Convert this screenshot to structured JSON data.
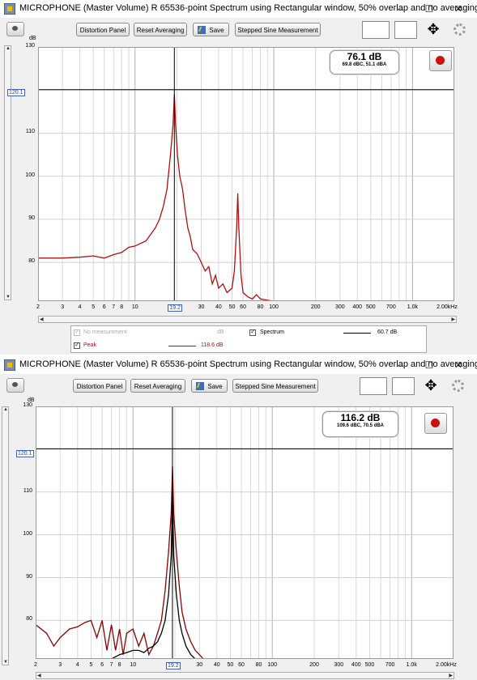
{
  "windows": [
    {
      "title": "MICROPHONE (Master Volume) R 65536-point Spectrum using Rectangular window, 50% overlap and no averaging",
      "controls": {
        "minimize": "–",
        "maximize": "☐",
        "close": "✕"
      },
      "toolbar": {
        "distortion_label": "Distortion Panel",
        "reset_label": "Reset Averaging",
        "save_label": "Save",
        "stepped_label": "Stepped Sine Measurement"
      },
      "y_unit": "dB",
      "cursor_y": "120.1",
      "cursor_x": "19.2",
      "readout_main": "76.1 dB",
      "readout_sub": "69.8 dBC, 51.1 dBA",
      "legend": {
        "no_measurement": "No measurement",
        "no_measurement_unit": "dB",
        "spectrum": "Spectrum",
        "spectrum_value": "60.7 dB",
        "peak": "Peak",
        "peak_value": "118.6 dB"
      }
    },
    {
      "title": "MICROPHONE (Master Volume) R 65536-point Spectrum using Rectangular window, 50% overlap and no averaging",
      "controls": {
        "minimize": "–",
        "maximize": "☐",
        "close": "✕"
      },
      "toolbar": {
        "distortion_label": "Distortion Panel",
        "reset_label": "Reset Averaging",
        "save_label": "Save",
        "stepped_label": "Stepped Sine Measurement"
      },
      "y_unit": "dB",
      "cursor_y": "120.1",
      "cursor_x": "19.2",
      "readout_main": "116.2 dB",
      "readout_sub": "109.6 dBC, 70.5 dBA"
    }
  ],
  "chart_data": [
    {
      "type": "line",
      "xscale": "log",
      "xlim": [
        2,
        2000
      ],
      "ylim": [
        71,
        130
      ],
      "x_ticks": [
        "2",
        "3",
        "4",
        "5",
        "6",
        "7",
        "8",
        "10",
        "19.2",
        "30",
        "40",
        "50",
        "60",
        "80",
        "100",
        "200",
        "300",
        "400",
        "500",
        "700",
        "1.0k",
        "2.00kHz"
      ],
      "y_ticks": [
        130,
        110,
        100,
        90,
        80
      ],
      "series": [
        {
          "name": "Peak",
          "color": "#b01010",
          "points": [
            [
              2,
              81
            ],
            [
              3,
              81
            ],
            [
              4,
              81.2
            ],
            [
              5,
              81.5
            ],
            [
              6,
              81
            ],
            [
              7,
              81.8
            ],
            [
              8,
              82.3
            ],
            [
              9,
              83.5
            ],
            [
              10,
              83.8
            ],
            [
              12,
              85
            ],
            [
              14,
              88
            ],
            [
              15,
              90
            ],
            [
              16,
              93
            ],
            [
              17,
              97
            ],
            [
              18,
              105
            ],
            [
              18.8,
              112
            ],
            [
              19.2,
              119
            ],
            [
              19.6,
              112
            ],
            [
              20.2,
              105
            ],
            [
              21,
              100
            ],
            [
              22,
              97
            ],
            [
              23,
              92
            ],
            [
              24,
              88
            ],
            [
              25,
              86
            ],
            [
              26,
              83
            ],
            [
              28,
              82
            ],
            [
              30,
              80
            ],
            [
              32,
              78
            ],
            [
              34,
              79
            ],
            [
              36,
              75
            ],
            [
              38,
              77
            ],
            [
              40,
              74
            ],
            [
              43,
              75
            ],
            [
              46,
              73
            ],
            [
              50,
              74
            ],
            [
              52,
              78
            ],
            [
              54,
              88
            ],
            [
              55,
              96
            ],
            [
              56,
              88
            ],
            [
              58,
              77
            ],
            [
              60,
              73
            ],
            [
              65,
              72
            ],
            [
              70,
              71.5
            ],
            [
              75,
              72.5
            ],
            [
              80,
              71.5
            ],
            [
              90,
              71.2
            ],
            [
              100,
              71
            ],
            [
              200,
              71
            ],
            [
              2000,
              71
            ]
          ]
        },
        {
          "name": "Spectrum",
          "color": "#000000",
          "points": []
        }
      ]
    },
    {
      "type": "line",
      "xscale": "log",
      "xlim": [
        2,
        2000
      ],
      "ylim": [
        71,
        130
      ],
      "x_ticks": [
        "2",
        "3",
        "4",
        "5",
        "6",
        "7",
        "8",
        "10",
        "19.2",
        "30",
        "40",
        "50",
        "60",
        "80",
        "100",
        "200",
        "300",
        "400",
        "500",
        "700",
        "1.0k",
        "2.00kHz"
      ],
      "y_ticks": [
        130,
        110,
        100,
        90,
        80
      ],
      "series": [
        {
          "name": "Peak",
          "color": "#8b0000",
          "points": [
            [
              2,
              79
            ],
            [
              2.4,
              77
            ],
            [
              2.7,
              74
            ],
            [
              3,
              76
            ],
            [
              3.5,
              78
            ],
            [
              4,
              78.5
            ],
            [
              4.5,
              79.5
            ],
            [
              5,
              80
            ],
            [
              5.5,
              76
            ],
            [
              6,
              80
            ],
            [
              6.5,
              73
            ],
            [
              7,
              79
            ],
            [
              7.5,
              73
            ],
            [
              8,
              78
            ],
            [
              8.5,
              72
            ],
            [
              9,
              77
            ],
            [
              10,
              78
            ],
            [
              11,
              74
            ],
            [
              12,
              77
            ],
            [
              13,
              72
            ],
            [
              14,
              74
            ],
            [
              15,
              77
            ],
            [
              16,
              80
            ],
            [
              17,
              87
            ],
            [
              18,
              96
            ],
            [
              18.8,
              105
            ],
            [
              19.2,
              116
            ],
            [
              19.6,
              105
            ],
            [
              20.5,
              96
            ],
            [
              21.5,
              88
            ],
            [
              22.5,
              82
            ],
            [
              24,
              78
            ],
            [
              26,
              75
            ],
            [
              28,
              73
            ],
            [
              30,
              72
            ],
            [
              32,
              71
            ]
          ]
        },
        {
          "name": "Spectrum",
          "color": "#000000",
          "points": [
            [
              7,
              71
            ],
            [
              8,
              72
            ],
            [
              9,
              72.5
            ],
            [
              10,
              73
            ],
            [
              11,
              73
            ],
            [
              12,
              72.5
            ],
            [
              13,
              73.5
            ],
            [
              14,
              74
            ],
            [
              15,
              75
            ],
            [
              16,
              77
            ],
            [
              17,
              80
            ],
            [
              18,
              86
            ],
            [
              18.8,
              95
            ],
            [
              19.2,
              110
            ],
            [
              19.6,
              95
            ],
            [
              20.5,
              86
            ],
            [
              21.5,
              80
            ],
            [
              22.5,
              77
            ],
            [
              24,
              74
            ],
            [
              26,
              72
            ],
            [
              28,
              71
            ]
          ]
        }
      ]
    }
  ]
}
